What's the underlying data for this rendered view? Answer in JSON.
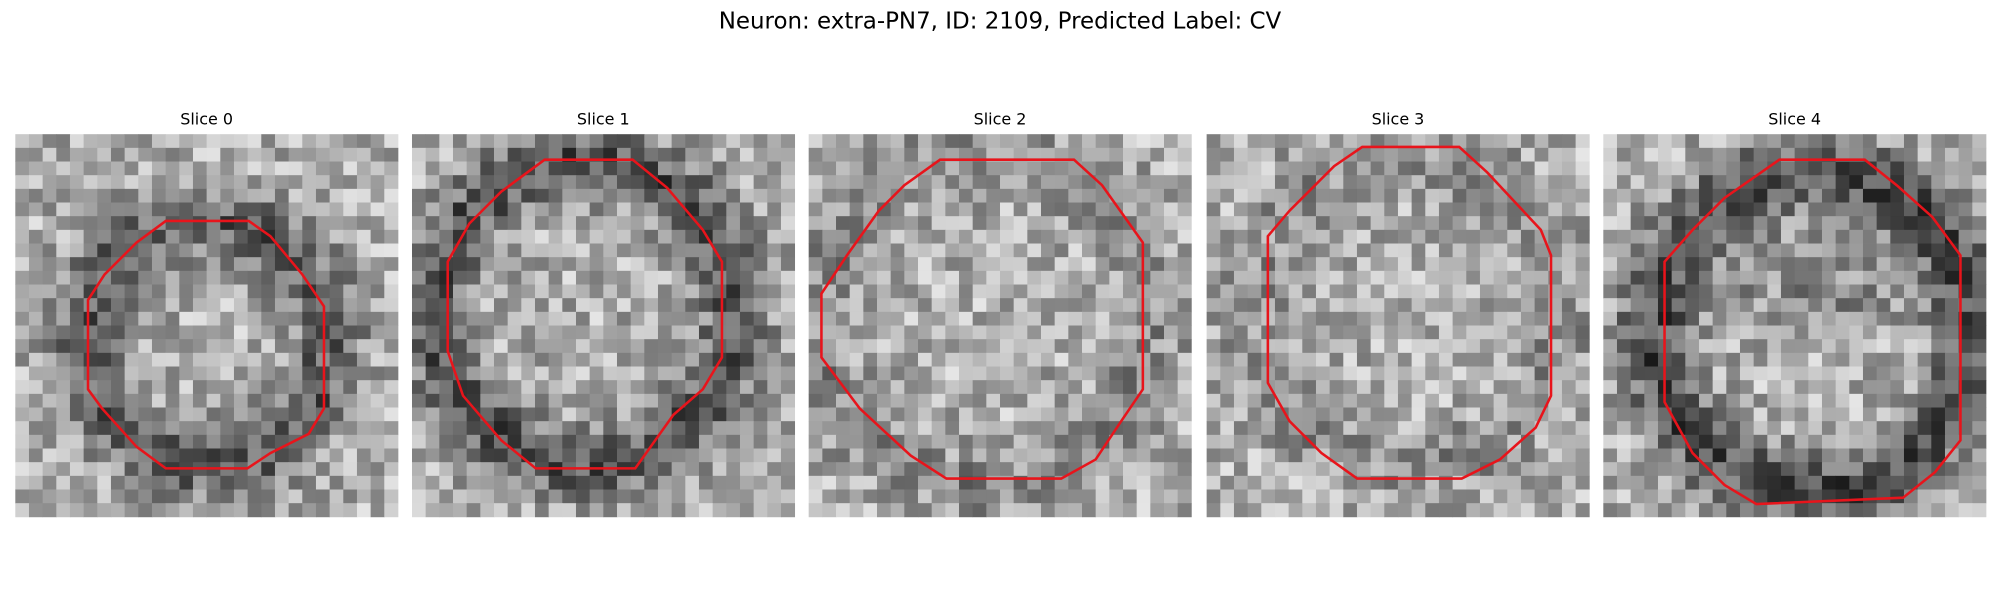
{
  "title": "Neuron: extra-PN7, ID: 2109, Predicted Label: CV",
  "panels": [
    {
      "title": "Slice 0"
    },
    {
      "title": "Slice 1"
    },
    {
      "title": "Slice 2"
    },
    {
      "title": "Slice 3"
    },
    {
      "title": "Slice 4"
    }
  ]
}
